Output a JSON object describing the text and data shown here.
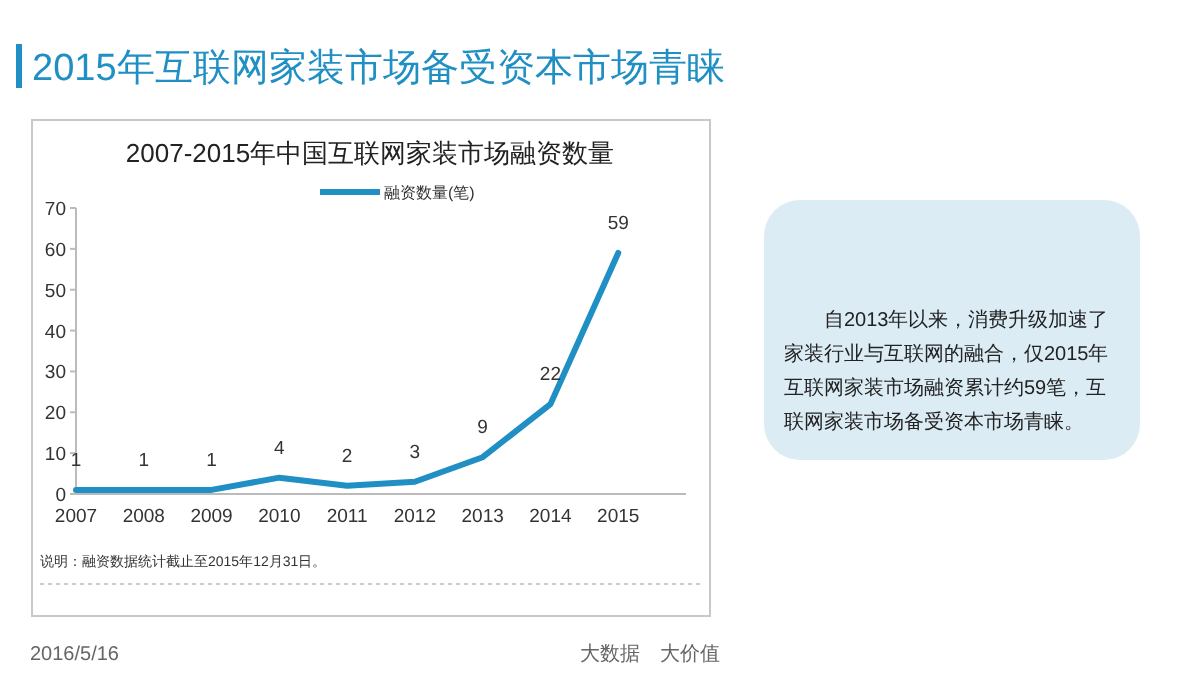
{
  "chart_data": {
    "type": "line",
    "title": "2007-2015年中国互联网家装市场融资数量",
    "categories": [
      "2007",
      "2008",
      "2009",
      "2010",
      "2011",
      "2012",
      "2013",
      "2014",
      "2015"
    ],
    "series": [
      {
        "name": "融资数量(笔)",
        "color": "#1f8fc4",
        "values": [
          1,
          1,
          1,
          4,
          2,
          3,
          9,
          22,
          59
        ]
      }
    ],
    "ylim": [
      0,
      70
    ],
    "yticks": [
      0,
      10,
      20,
      30,
      40,
      50,
      60,
      70
    ],
    "data_labels": true,
    "legend": "top",
    "annotations": [
      "2015年互联网家装市场备受资本市场青睐",
      "说明：融资数据统计截止至2015年12月31日。",
      "自2013年以来，消费升级加速了家装行业与互联网的融合，仅2015年互联网家装市场融资累计约59笔，互联网家装市场备受资本市场青睐。",
      "2016/5/16",
      "大数据　大价值"
    ]
  }
}
